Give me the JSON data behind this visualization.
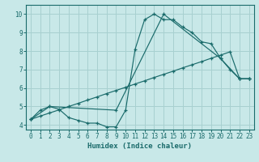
{
  "xlabel": "Humidex (Indice chaleur)",
  "xlim": [
    -0.5,
    23.5
  ],
  "ylim": [
    3.75,
    10.5
  ],
  "xticks": [
    0,
    1,
    2,
    3,
    4,
    5,
    6,
    7,
    8,
    9,
    10,
    11,
    12,
    13,
    14,
    15,
    16,
    17,
    18,
    19,
    20,
    21,
    22,
    23
  ],
  "yticks": [
    4,
    5,
    6,
    7,
    8,
    9,
    10
  ],
  "background_color": "#c8e8e8",
  "grid_color": "#a8d0d0",
  "line_color": "#1a6b6b",
  "line1_x": [
    0,
    1,
    2,
    3,
    4,
    5,
    6,
    7,
    8,
    9,
    10,
    11,
    12,
    13,
    14,
    15,
    16,
    17,
    18,
    19,
    20,
    21,
    22,
    23
  ],
  "line1_y": [
    4.3,
    4.8,
    5.0,
    4.85,
    4.4,
    4.25,
    4.1,
    4.1,
    3.9,
    3.9,
    4.8,
    8.1,
    9.7,
    10.0,
    9.7,
    9.7,
    9.3,
    9.0,
    8.5,
    8.4,
    7.6,
    7.0,
    6.5,
    6.5
  ],
  "line2_x": [
    0,
    1,
    2,
    3,
    4,
    5,
    6,
    7,
    8,
    9,
    10,
    11,
    12,
    13,
    14,
    15,
    16,
    17,
    18,
    19,
    20,
    21,
    22,
    23
  ],
  "line2_y": [
    4.3,
    4.48,
    4.65,
    4.82,
    5.0,
    5.17,
    5.35,
    5.52,
    5.7,
    5.87,
    6.04,
    6.22,
    6.39,
    6.57,
    6.74,
    6.91,
    7.09,
    7.26,
    7.43,
    7.61,
    7.78,
    7.96,
    6.5,
    6.5
  ],
  "line3_x": [
    0,
    2,
    9,
    14,
    20,
    22,
    23
  ],
  "line3_y": [
    4.3,
    5.0,
    4.8,
    10.0,
    7.6,
    6.5,
    6.5
  ]
}
